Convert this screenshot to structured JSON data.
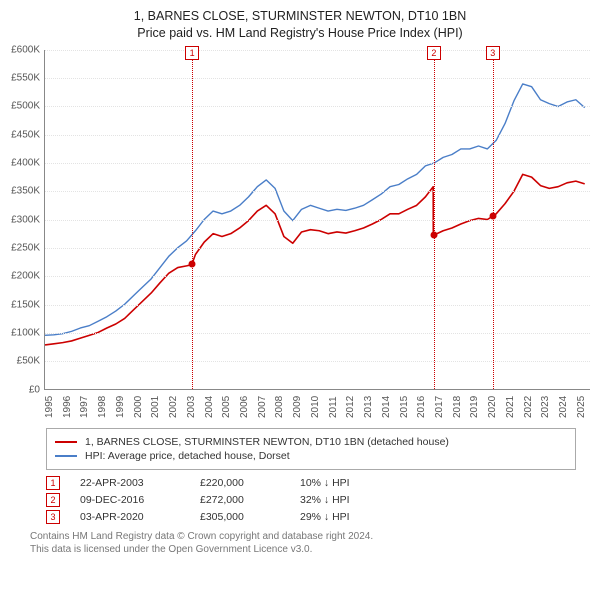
{
  "title": {
    "line1": "1, BARNES CLOSE, STURMINSTER NEWTON, DT10 1BN",
    "line2": "Price paid vs. HM Land Registry's House Price Index (HPI)",
    "fontsize": 12.5,
    "color": "#222222"
  },
  "chart": {
    "type": "line",
    "background_color": "#ffffff",
    "grid_color": "#e3e3e3",
    "axis_color": "#888888",
    "label_fontsize": 10,
    "label_color": "#555555",
    "x": {
      "min": 1995,
      "max": 2025.8,
      "ticks": [
        1995,
        1996,
        1997,
        1998,
        1999,
        2000,
        2001,
        2002,
        2003,
        2004,
        2005,
        2006,
        2007,
        2008,
        2009,
        2010,
        2011,
        2012,
        2013,
        2014,
        2015,
        2016,
        2017,
        2018,
        2019,
        2020,
        2021,
        2022,
        2023,
        2024,
        2025
      ]
    },
    "y": {
      "min": 0,
      "max": 600000,
      "ticks": [
        0,
        50000,
        100000,
        150000,
        200000,
        250000,
        300000,
        350000,
        400000,
        450000,
        500000,
        550000,
        600000
      ],
      "tick_labels": [
        "£0",
        "£50K",
        "£100K",
        "£150K",
        "£200K",
        "£250K",
        "£300K",
        "£350K",
        "£400K",
        "£450K",
        "£500K",
        "£550K",
        "£600K"
      ]
    },
    "series": [
      {
        "name": "1, BARNES CLOSE, STURMINSTER NEWTON, DT10 1BN (detached house)",
        "color": "#cc0000",
        "line_width": 1.6,
        "x": [
          1995,
          1995.5,
          1996,
          1996.5,
          1997,
          1997.5,
          1998,
          1998.5,
          1999,
          1999.5,
          2000,
          2000.5,
          2001,
          2001.5,
          2002,
          2002.5,
          2003,
          2003.3,
          2003.5,
          2004,
          2004.5,
          2005,
          2005.5,
          2006,
          2006.5,
          2007,
          2007.5,
          2008,
          2008.5,
          2009,
          2009.5,
          2010,
          2010.5,
          2011,
          2011.5,
          2012,
          2012.5,
          2013,
          2013.5,
          2014,
          2014.5,
          2015,
          2015.5,
          2016,
          2016.5,
          2016.94,
          2016.941,
          2017.5,
          2018,
          2018.5,
          2019,
          2019.5,
          2020,
          2020.26,
          2020.261,
          2020.5,
          2021,
          2021.5,
          2022,
          2022.5,
          2023,
          2023.5,
          2024,
          2024.5,
          2025,
          2025.5
        ],
        "y": [
          78000,
          80000,
          82000,
          85000,
          90000,
          95000,
          100000,
          108000,
          115000,
          125000,
          140000,
          155000,
          170000,
          188000,
          205000,
          215000,
          218000,
          220000,
          238000,
          260000,
          275000,
          270000,
          275000,
          285000,
          298000,
          315000,
          325000,
          310000,
          270000,
          258000,
          278000,
          282000,
          280000,
          275000,
          278000,
          276000,
          280000,
          285000,
          292000,
          300000,
          310000,
          310000,
          318000,
          325000,
          340000,
          358000,
          272000,
          280000,
          285000,
          292000,
          298000,
          302000,
          300000,
          305000,
          305000,
          310000,
          328000,
          350000,
          380000,
          375000,
          360000,
          355000,
          358000,
          365000,
          368000,
          363000
        ]
      },
      {
        "name": "HPI: Average price, detached house, Dorset",
        "color": "#4a7ec8",
        "line_width": 1.4,
        "x": [
          1995,
          1995.5,
          1996,
          1996.5,
          1997,
          1997.5,
          1998,
          1998.5,
          1999,
          1999.5,
          2000,
          2000.5,
          2001,
          2001.5,
          2002,
          2002.5,
          2003,
          2003.5,
          2004,
          2004.5,
          2005,
          2005.5,
          2006,
          2006.5,
          2007,
          2007.5,
          2008,
          2008.5,
          2009,
          2009.5,
          2010,
          2010.5,
          2011,
          2011.5,
          2012,
          2012.5,
          2013,
          2013.5,
          2014,
          2014.5,
          2015,
          2015.5,
          2016,
          2016.5,
          2017,
          2017.5,
          2018,
          2018.5,
          2019,
          2019.5,
          2020,
          2020.5,
          2021,
          2021.5,
          2022,
          2022.5,
          2023,
          2023.5,
          2024,
          2024.5,
          2025,
          2025.5
        ],
        "y": [
          95000,
          96000,
          98000,
          102000,
          108000,
          112000,
          120000,
          128000,
          138000,
          150000,
          165000,
          180000,
          195000,
          215000,
          235000,
          250000,
          262000,
          280000,
          300000,
          315000,
          310000,
          315000,
          325000,
          340000,
          358000,
          370000,
          355000,
          315000,
          298000,
          318000,
          325000,
          320000,
          315000,
          318000,
          316000,
          320000,
          325000,
          335000,
          345000,
          358000,
          362000,
          372000,
          380000,
          395000,
          400000,
          410000,
          415000,
          425000,
          425000,
          430000,
          425000,
          440000,
          470000,
          510000,
          540000,
          535000,
          512000,
          505000,
          500000,
          508000,
          512000,
          498000
        ]
      }
    ],
    "markers": [
      {
        "id": "1",
        "x": 2003.3,
        "y": 220000,
        "color": "#cc0000"
      },
      {
        "id": "2",
        "x": 2016.94,
        "y": 272000,
        "color": "#cc0000"
      },
      {
        "id": "3",
        "x": 2020.26,
        "y": 305000,
        "color": "#cc0000"
      }
    ]
  },
  "legend": {
    "border_color": "#aaaaaa",
    "fontsize": 10.5,
    "items": [
      {
        "label": "1, BARNES CLOSE, STURMINSTER NEWTON, DT10 1BN (detached house)",
        "color": "#cc0000"
      },
      {
        "label": "HPI: Average price, detached house, Dorset",
        "color": "#4a7ec8"
      }
    ]
  },
  "events": [
    {
      "id": "1",
      "date": "22-APR-2003",
      "price": "£220,000",
      "diff": "10% ↓ HPI",
      "color": "#cc0000"
    },
    {
      "id": "2",
      "date": "09-DEC-2016",
      "price": "£272,000",
      "diff": "32% ↓ HPI",
      "color": "#cc0000"
    },
    {
      "id": "3",
      "date": "03-APR-2020",
      "price": "£305,000",
      "diff": "29% ↓ HPI",
      "color": "#cc0000"
    }
  ],
  "footer": {
    "line1": "Contains HM Land Registry data © Crown copyright and database right 2024.",
    "line2": "This data is licensed under the Open Government Licence v3.0.",
    "color": "#777777",
    "fontsize": 10
  }
}
